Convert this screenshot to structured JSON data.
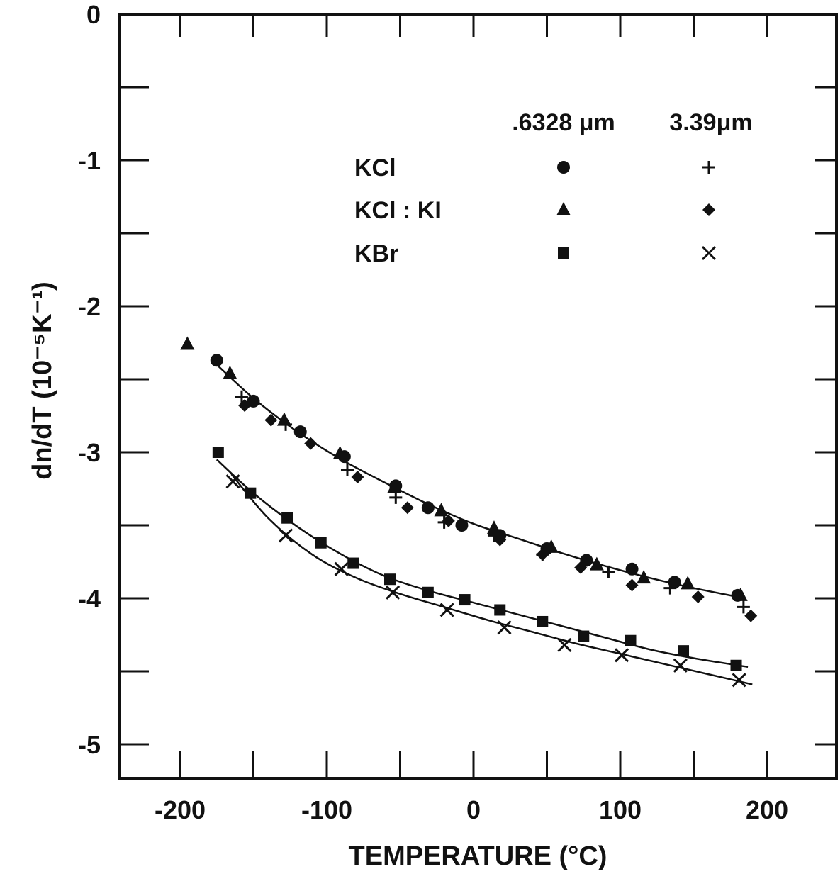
{
  "chart_data": {
    "type": "scatter",
    "xlabel": "TEMPERATURE (°C)",
    "ylabel": "dn/dT (10⁻⁵K⁻¹)",
    "xlim": [
      -240,
      250
    ],
    "ylim": [
      -5.2,
      0
    ],
    "x_ticks": [
      -200,
      -100,
      0,
      100,
      200
    ],
    "y_ticks": [
      0,
      -1,
      -2,
      -3,
      -4,
      -5
    ],
    "legend": {
      "placement": "top-right",
      "column_headers": [
        ".6328 μm",
        "3.39μm"
      ],
      "rows": [
        {
          "label": "KCl",
          "markers": [
            "circle",
            "plus"
          ]
        },
        {
          "label": "KCl : KI",
          "markers": [
            "triangle",
            "diamond"
          ]
        },
        {
          "label": "KBr",
          "markers": [
            "square",
            "cross"
          ]
        }
      ]
    },
    "series": [
      {
        "name": "KCl .6328 μm",
        "marker": "circle",
        "x": [
          -175,
          -150,
          -118,
          -88,
          -53,
          -31,
          -8,
          18,
          50,
          77,
          108,
          137,
          180
        ],
        "y": [
          -2.37,
          -2.65,
          -2.86,
          -3.03,
          -3.23,
          -3.38,
          -3.5,
          -3.57,
          -3.66,
          -3.74,
          -3.8,
          -3.89,
          -3.98
        ]
      },
      {
        "name": "KCl 3.39μm",
        "marker": "plus",
        "x": [
          -158,
          -128,
          -86,
          -53,
          -20,
          14,
          47,
          92,
          134,
          184
        ],
        "y": [
          -2.62,
          -2.81,
          -3.12,
          -3.31,
          -3.48,
          -3.57,
          -3.7,
          -3.82,
          -3.93,
          -4.06
        ]
      },
      {
        "name": "KCl : KI .6328 μm",
        "marker": "triangle",
        "x": [
          -195,
          -166,
          -129,
          -91,
          -54,
          -22,
          14,
          53,
          84,
          116,
          146,
          182
        ],
        "y": [
          -2.26,
          -2.46,
          -2.78,
          -3.01,
          -3.24,
          -3.4,
          -3.52,
          -3.65,
          -3.77,
          -3.86,
          -3.9,
          -3.98
        ]
      },
      {
        "name": "KCl : KI 3.39μm",
        "marker": "diamond",
        "x": [
          -156,
          -138,
          -111,
          -79,
          -45,
          -17,
          18,
          47,
          73,
          108,
          153,
          189
        ],
        "y": [
          -2.68,
          -2.78,
          -2.94,
          -3.17,
          -3.38,
          -3.47,
          -3.6,
          -3.7,
          -3.79,
          -3.91,
          -3.99,
          -4.12
        ]
      },
      {
        "name": "KBr .6328 μm",
        "marker": "square",
        "x": [
          -174,
          -152,
          -127,
          -104,
          -82,
          -57,
          -31,
          -6,
          18,
          47,
          75,
          107,
          143,
          179
        ],
        "y": [
          -3.0,
          -3.28,
          -3.45,
          -3.62,
          -3.76,
          -3.87,
          -3.96,
          -4.01,
          -4.08,
          -4.16,
          -4.26,
          -4.29,
          -4.36,
          -4.46
        ]
      },
      {
        "name": "KBr 3.39μm",
        "marker": "cross",
        "x": [
          -164,
          -128,
          -90,
          -55,
          -18,
          21,
          62,
          101,
          141,
          181
        ],
        "y": [
          -3.2,
          -3.57,
          -3.8,
          -3.96,
          -4.08,
          -4.2,
          -4.32,
          -4.39,
          -4.46,
          -4.56
        ]
      }
    ],
    "fit_curves": [
      {
        "x": [
          -175,
          -150,
          -120,
          -90,
          -60,
          -30,
          0,
          30,
          60,
          90,
          120,
          150,
          185
        ],
        "y": [
          -2.4,
          -2.63,
          -2.86,
          -3.05,
          -3.21,
          -3.36,
          -3.49,
          -3.59,
          -3.69,
          -3.78,
          -3.86,
          -3.93,
          -4.0
        ]
      },
      {
        "x": [
          -175,
          -150,
          -120,
          -90,
          -60,
          -30,
          0,
          30,
          60,
          90,
          120,
          150,
          187
        ],
        "y": [
          -3.05,
          -3.28,
          -3.51,
          -3.7,
          -3.85,
          -3.95,
          -4.03,
          -4.11,
          -4.19,
          -4.27,
          -4.35,
          -4.41,
          -4.47
        ]
      },
      {
        "x": [
          -165,
          -140,
          -110,
          -80,
          -50,
          -20,
          10,
          40,
          70,
          100,
          130,
          160,
          190
        ],
        "y": [
          -3.15,
          -3.45,
          -3.7,
          -3.86,
          -3.97,
          -4.06,
          -4.15,
          -4.23,
          -4.31,
          -4.38,
          -4.45,
          -4.52,
          -4.59
        ]
      }
    ]
  }
}
